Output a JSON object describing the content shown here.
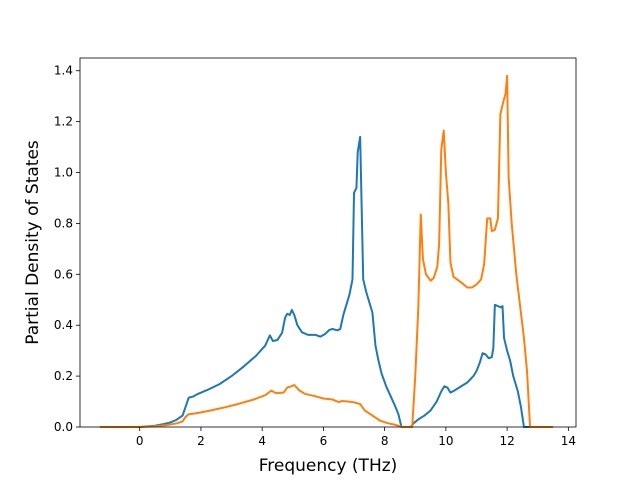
{
  "chart_data": {
    "type": "line",
    "title": "",
    "xlabel": "Frequency (THz)",
    "ylabel": "Partial Density of States",
    "xlim": [
      -1.95,
      14.25
    ],
    "ylim": [
      0,
      1.45
    ],
    "xticks": [
      0,
      2,
      4,
      6,
      8,
      10,
      12,
      14
    ],
    "yticks": [
      0.0,
      0.2,
      0.4,
      0.6,
      0.8,
      1.0,
      1.2,
      1.4
    ],
    "xtick_labels": [
      "0",
      "2",
      "4",
      "6",
      "8",
      "10",
      "12",
      "14"
    ],
    "ytick_labels": [
      "0.0",
      "0.2",
      "0.4",
      "0.6",
      "0.8",
      "1.0",
      "1.2",
      "1.4"
    ],
    "grid": false,
    "legend": "none",
    "series": [
      {
        "color": "#1f77b4",
        "points": [
          [
            -1.3,
            0.0
          ],
          [
            0.0,
            0.0
          ],
          [
            0.5,
            0.005
          ],
          [
            0.8,
            0.012
          ],
          [
            1.0,
            0.018
          ],
          [
            1.2,
            0.028
          ],
          [
            1.4,
            0.045
          ],
          [
            1.5,
            0.08
          ],
          [
            1.6,
            0.115
          ],
          [
            1.75,
            0.12
          ],
          [
            1.9,
            0.13
          ],
          [
            2.2,
            0.145
          ],
          [
            2.6,
            0.168
          ],
          [
            3.0,
            0.2
          ],
          [
            3.4,
            0.238
          ],
          [
            3.8,
            0.28
          ],
          [
            4.1,
            0.32
          ],
          [
            4.25,
            0.36
          ],
          [
            4.35,
            0.338
          ],
          [
            4.5,
            0.342
          ],
          [
            4.65,
            0.37
          ],
          [
            4.75,
            0.43
          ],
          [
            4.82,
            0.445
          ],
          [
            4.9,
            0.44
          ],
          [
            4.97,
            0.46
          ],
          [
            5.05,
            0.44
          ],
          [
            5.15,
            0.4
          ],
          [
            5.3,
            0.372
          ],
          [
            5.5,
            0.362
          ],
          [
            5.75,
            0.362
          ],
          [
            5.9,
            0.355
          ],
          [
            6.05,
            0.365
          ],
          [
            6.2,
            0.382
          ],
          [
            6.3,
            0.385
          ],
          [
            6.45,
            0.38
          ],
          [
            6.55,
            0.385
          ],
          [
            6.65,
            0.44
          ],
          [
            6.75,
            0.48
          ],
          [
            6.85,
            0.52
          ],
          [
            6.95,
            0.58
          ],
          [
            7.0,
            0.92
          ],
          [
            7.08,
            0.94
          ],
          [
            7.12,
            1.08
          ],
          [
            7.2,
            1.14
          ],
          [
            7.3,
            0.58
          ],
          [
            7.4,
            0.53
          ],
          [
            7.5,
            0.49
          ],
          [
            7.6,
            0.45
          ],
          [
            7.7,
            0.32
          ],
          [
            7.8,
            0.26
          ],
          [
            7.9,
            0.21
          ],
          [
            8.05,
            0.16
          ],
          [
            8.2,
            0.12
          ],
          [
            8.35,
            0.08
          ],
          [
            8.45,
            0.05
          ],
          [
            8.55,
            0.0
          ],
          [
            8.85,
            0.0
          ],
          [
            8.95,
            0.015
          ],
          [
            9.1,
            0.03
          ],
          [
            9.3,
            0.045
          ],
          [
            9.5,
            0.065
          ],
          [
            9.7,
            0.1
          ],
          [
            9.85,
            0.14
          ],
          [
            9.95,
            0.16
          ],
          [
            10.05,
            0.155
          ],
          [
            10.15,
            0.135
          ],
          [
            10.3,
            0.145
          ],
          [
            10.5,
            0.16
          ],
          [
            10.7,
            0.175
          ],
          [
            10.9,
            0.2
          ],
          [
            11.0,
            0.22
          ],
          [
            11.1,
            0.25
          ],
          [
            11.2,
            0.29
          ],
          [
            11.3,
            0.285
          ],
          [
            11.4,
            0.27
          ],
          [
            11.5,
            0.275
          ],
          [
            11.55,
            0.31
          ],
          [
            11.6,
            0.48
          ],
          [
            11.7,
            0.475
          ],
          [
            11.8,
            0.47
          ],
          [
            11.85,
            0.475
          ],
          [
            11.9,
            0.35
          ],
          [
            12.0,
            0.3
          ],
          [
            12.1,
            0.26
          ],
          [
            12.2,
            0.2
          ],
          [
            12.35,
            0.14
          ],
          [
            12.45,
            0.08
          ],
          [
            12.55,
            0.0
          ],
          [
            13.0,
            0.0
          ]
        ]
      },
      {
        "color": "#ff7f0e",
        "points": [
          [
            -1.3,
            0.0
          ],
          [
            0.0,
            0.0
          ],
          [
            0.5,
            0.003
          ],
          [
            0.9,
            0.008
          ],
          [
            1.2,
            0.014
          ],
          [
            1.4,
            0.022
          ],
          [
            1.5,
            0.04
          ],
          [
            1.6,
            0.05
          ],
          [
            1.8,
            0.053
          ],
          [
            2.2,
            0.062
          ],
          [
            2.7,
            0.075
          ],
          [
            3.2,
            0.09
          ],
          [
            3.7,
            0.107
          ],
          [
            4.1,
            0.125
          ],
          [
            4.3,
            0.143
          ],
          [
            4.45,
            0.133
          ],
          [
            4.7,
            0.135
          ],
          [
            4.82,
            0.155
          ],
          [
            4.95,
            0.16
          ],
          [
            5.05,
            0.165
          ],
          [
            5.2,
            0.145
          ],
          [
            5.4,
            0.13
          ],
          [
            5.7,
            0.122
          ],
          [
            6.0,
            0.112
          ],
          [
            6.3,
            0.108
          ],
          [
            6.5,
            0.098
          ],
          [
            6.6,
            0.102
          ],
          [
            6.8,
            0.1
          ],
          [
            7.0,
            0.097
          ],
          [
            7.2,
            0.09
          ],
          [
            7.35,
            0.065
          ],
          [
            7.6,
            0.045
          ],
          [
            7.85,
            0.025
          ],
          [
            8.1,
            0.015
          ],
          [
            8.3,
            0.01
          ],
          [
            8.5,
            0.003
          ],
          [
            8.55,
            0.0
          ],
          [
            8.9,
            0.0
          ],
          [
            9.0,
            0.2
          ],
          [
            9.1,
            0.47
          ],
          [
            9.18,
            0.835
          ],
          [
            9.25,
            0.66
          ],
          [
            9.35,
            0.6
          ],
          [
            9.5,
            0.575
          ],
          [
            9.6,
            0.585
          ],
          [
            9.72,
            0.63
          ],
          [
            9.78,
            0.72
          ],
          [
            9.85,
            1.09
          ],
          [
            9.93,
            1.165
          ],
          [
            10.0,
            1.0
          ],
          [
            10.08,
            0.88
          ],
          [
            10.15,
            0.645
          ],
          [
            10.25,
            0.59
          ],
          [
            10.5,
            0.568
          ],
          [
            10.7,
            0.548
          ],
          [
            10.85,
            0.548
          ],
          [
            11.0,
            0.56
          ],
          [
            11.15,
            0.58
          ],
          [
            11.25,
            0.64
          ],
          [
            11.35,
            0.82
          ],
          [
            11.45,
            0.82
          ],
          [
            11.5,
            0.77
          ],
          [
            11.6,
            0.775
          ],
          [
            11.7,
            0.82
          ],
          [
            11.78,
            1.23
          ],
          [
            11.88,
            1.28
          ],
          [
            11.95,
            1.31
          ],
          [
            12.0,
            1.38
          ],
          [
            12.05,
            0.98
          ],
          [
            12.15,
            0.8
          ],
          [
            12.3,
            0.6
          ],
          [
            12.55,
            0.35
          ],
          [
            12.65,
            0.22
          ],
          [
            12.75,
            0.0
          ],
          [
            13.5,
            0.0
          ]
        ]
      }
    ]
  }
}
